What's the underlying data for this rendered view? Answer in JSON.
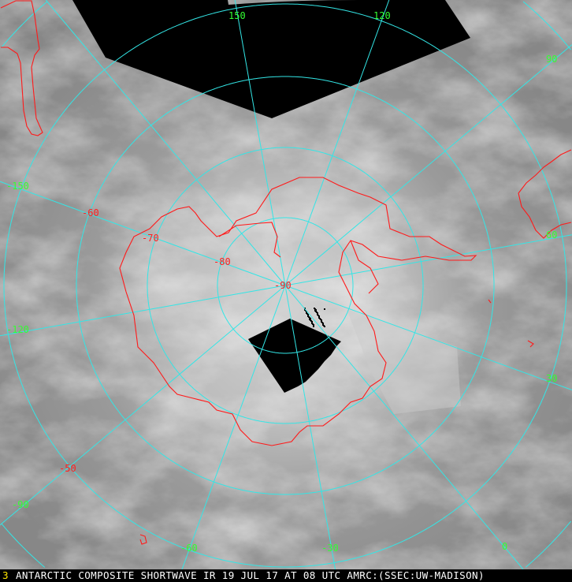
{
  "image": {
    "caption": "ANTARCTIC COMPOSITE SHORTWAVE IR 19 JUL 17 AT 08 UTC AMRC:(SSEC:UW-MADISON)",
    "cursor_glyph": "3"
  },
  "map": {
    "projection": "south-polar",
    "grid_color": "#33e6e6",
    "coastline_color": "#ff1a1a",
    "longitude_label_color": "#33ff33",
    "latitude_label_color": "#ff2020",
    "longitude_labels": [
      "150",
      "120",
      "90",
      "60",
      "30",
      "0",
      "-30",
      "-60",
      "-90",
      "-120",
      "-150"
    ],
    "latitude_labels": [
      "-90",
      "-80",
      "-70",
      "-60",
      "-50"
    ],
    "longitudes": [
      150,
      120,
      90,
      60,
      30,
      0,
      -30,
      -60,
      -90,
      -120,
      -150,
      180
    ],
    "latitudes": [
      -80,
      -70,
      -60,
      -50,
      -40
    ]
  }
}
